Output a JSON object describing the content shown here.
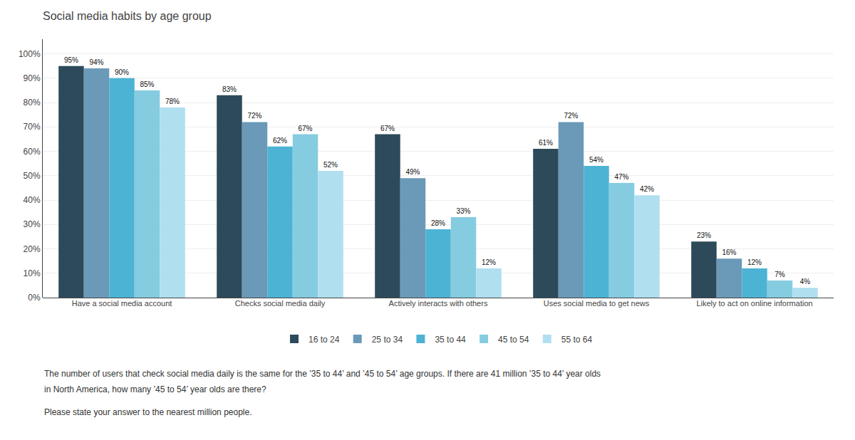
{
  "chart_data": {
    "type": "bar",
    "title": "Social media habits by age group",
    "categories": [
      "Have a social media account",
      "Checks social media daily",
      "Actively interacts with others",
      "Uses social media to get news",
      "Likely to act on online information"
    ],
    "series": [
      {
        "name": "16 to 24",
        "color": "#2d4a5a",
        "values": [
          95,
          83,
          67,
          61,
          23
        ],
        "value_labels": [
          "95%",
          "83%",
          "67%",
          "61%",
          "23%"
        ]
      },
      {
        "name": "25 to 34",
        "color": "#6b9ab8",
        "values": [
          94,
          72,
          49,
          72,
          16
        ],
        "value_labels": [
          "94%",
          "72%",
          "49%",
          "72%",
          "16%"
        ]
      },
      {
        "name": "35 to 44",
        "color": "#4db3d4",
        "values": [
          90,
          62,
          28,
          54,
          12
        ],
        "value_labels": [
          "90%",
          "62%",
          "28%",
          "54%",
          "12%"
        ]
      },
      {
        "name": "45 to 54",
        "color": "#85cce0",
        "values": [
          85,
          67,
          33,
          47,
          7
        ],
        "value_labels": [
          "85%",
          "67%",
          "33%",
          "47%",
          "7%"
        ]
      },
      {
        "name": "55 to 64",
        "color": "#b0dff0",
        "values": [
          78,
          52,
          12,
          42,
          4
        ],
        "value_labels": [
          "78%",
          "52%",
          "12%",
          "42%",
          "4%"
        ]
      }
    ],
    "ylim": [
      0,
      106
    ],
    "yticks": [
      {
        "value": 0,
        "label": "0%"
      },
      {
        "value": 10,
        "label": "10%"
      },
      {
        "value": 20,
        "label": "20%"
      },
      {
        "value": 30,
        "label": "30%"
      },
      {
        "value": 40,
        "label": "40%"
      },
      {
        "value": 50,
        "label": "50%"
      },
      {
        "value": 60,
        "label": "60%"
      },
      {
        "value": 70,
        "label": "70%"
      },
      {
        "value": 80,
        "label": "80%"
      },
      {
        "value": 90,
        "label": "90%"
      },
      {
        "value": 100,
        "label": "100%"
      }
    ],
    "grid": true,
    "legend": "bottom",
    "data_labels": true,
    "annotations": [
      "The number of users that check social media daily is the same for the ’35 to 44’ and ’45 to 54’ age groups. If there are 41 million ’35 to 44’ year olds",
      "in North America, how many ’45 to 54’ year olds are there?",
      "Please state your answer to the nearest million people."
    ]
  }
}
